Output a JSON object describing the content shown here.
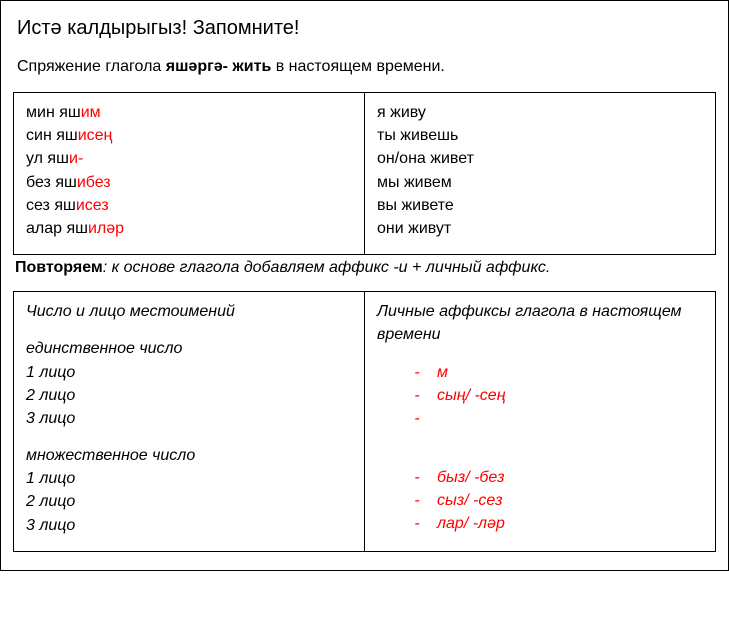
{
  "title": "Истә калдырыгыз! Запомните!",
  "subtitle_pre": "Спряжение глагола ",
  "subtitle_bold": "яшәргә- жить",
  "subtitle_post": " в настоящем времени.",
  "conjugation": {
    "tatar": [
      {
        "prefix": "мин яш",
        "i": "и",
        "suffix": "м"
      },
      {
        "prefix": "син яш",
        "i": "и",
        "suffix": "сең"
      },
      {
        "prefix": "ул яш",
        "i": "и",
        "suffix": "-"
      },
      {
        "prefix": "без яш",
        "i": "и",
        "suffix": "без"
      },
      {
        "prefix": "сез яш",
        "i": "и",
        "suffix": "сез"
      },
      {
        "prefix": "алар яш",
        "i": "и",
        "suffix": "ләр"
      }
    ],
    "russian": [
      "я живу",
      "ты живешь",
      "он/она живет",
      "мы живем",
      "вы живете",
      "они живут"
    ]
  },
  "note_bold": "Повторяем",
  "note_rest": ": к основе глагола добавляем аффикс -и + личный аффикс.",
  "pronouns": {
    "header": "Число и лицо местоимений",
    "singular_label": "единственное число",
    "plural_label": "множественное число",
    "persons": [
      "1 лицо",
      "2 лицо",
      "3 лицо"
    ]
  },
  "affixes": {
    "header": "Личные аффиксы глагола в настоящем времени",
    "singular": [
      "м",
      "сың/ -сең",
      ""
    ],
    "plural": [
      "быз/ -без",
      "сыз/ -сез",
      "лар/ -ләр"
    ]
  },
  "colors": {
    "highlight": "#ff0000",
    "text": "#000000",
    "border": "#000000",
    "background": "#ffffff"
  }
}
